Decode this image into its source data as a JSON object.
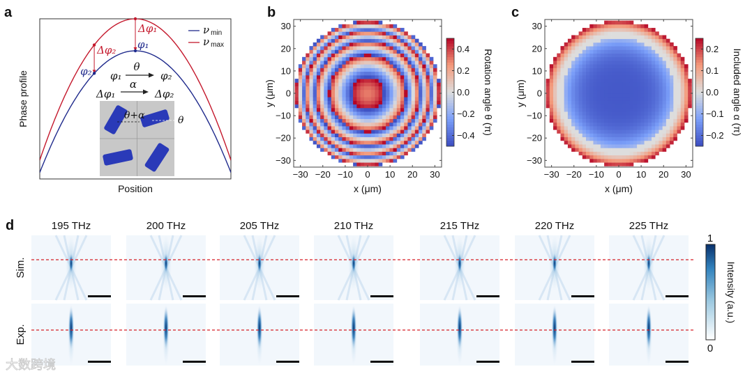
{
  "colors": {
    "nu_min": "#1f2a8c",
    "nu_max": "#c4182c",
    "cool": "#3b4cc0",
    "neutral": "#dddddd",
    "warm": "#b40426",
    "beam": "#08519c",
    "dash": "#d61f26",
    "meta_blue": "#2a3ab8",
    "inset_bg": "#c8c8c8"
  },
  "watermark": "大数跨境",
  "chart_data": [
    {
      "panel": "a",
      "type": "line",
      "xlabel": "Position",
      "ylabel": "Phase profile",
      "xlim": [
        0,
        1
      ],
      "ylim": [
        0,
        1
      ],
      "legend_position": "top-right",
      "series": [
        {
          "name": "ν min",
          "label_main": "ν",
          "label_sub": "min",
          "peak": 0.8,
          "edge": 0.04
        },
        {
          "name": "ν max",
          "label_main": "ν",
          "label_sub": "max",
          "peak": 1.0,
          "edge": 0.117
        }
      ],
      "points": [
        {
          "x": 0.5,
          "label_red": "Δφ₁",
          "label_blue": "φ₁"
        },
        {
          "x": 0.285,
          "label_red": "Δφ₂",
          "label_blue": "φ₂"
        }
      ],
      "annotations": {
        "phi1": "φ₁",
        "phi2": "φ₂",
        "theta": "θ",
        "dphi1": "Δφ₁",
        "dphi2": "Δφ₂",
        "alpha": "α",
        "inset_theta_alpha": "θ+α",
        "inset_theta": "θ"
      }
    },
    {
      "panel": "b",
      "type": "heatmap",
      "xlabel": "x (μm)",
      "ylabel": "y (μm)",
      "xlim": [
        -33,
        33
      ],
      "ylim": [
        -33,
        33
      ],
      "xticks": [
        "−30",
        "−20",
        "−10",
        "0",
        "10",
        "20",
        "30"
      ],
      "xtick_values": [
        -30,
        -20,
        -10,
        0,
        10,
        20,
        30
      ],
      "yticks": [
        "30",
        "20",
        "10",
        "0",
        "−10",
        "−20",
        "−30"
      ],
      "ytick_values": [
        30,
        20,
        10,
        0,
        -10,
        -20,
        -30
      ],
      "aperture_radius_um": 32.5,
      "cell_um": 1.625,
      "model": {
        "kind": "wrapped_quadratic",
        "offset": 0.3,
        "period_r2_um2": 245
      },
      "colorbar": {
        "label": "Rotation angle θ (π)",
        "range": [
          -0.5,
          0.5
        ],
        "ticks": [
          "0.4",
          "0.2",
          "0.0",
          "−0.2",
          "−0.4"
        ],
        "tick_values": [
          0.4,
          0.2,
          0.0,
          -0.2,
          -0.4
        ]
      }
    },
    {
      "panel": "c",
      "type": "heatmap",
      "xlabel": "x (μm)",
      "ylabel": "y (μm)",
      "xlim": [
        -33,
        33
      ],
      "ylim": [
        -33,
        33
      ],
      "xticks": [
        "−30",
        "−20",
        "−10",
        "0",
        "10",
        "20",
        "30"
      ],
      "xtick_values": [
        -30,
        -20,
        -10,
        0,
        10,
        20,
        30
      ],
      "yticks": [
        "30",
        "20",
        "10",
        "0",
        "−10",
        "−20",
        "−30"
      ],
      "ytick_values": [
        30,
        20,
        10,
        0,
        -10,
        -20,
        -30
      ],
      "aperture_radius_um": 32.5,
      "cell_um": 1.625,
      "model": {
        "kind": "power",
        "center": -0.23,
        "amplitude": 0.47,
        "exponent": 4
      },
      "colorbar": {
        "label": "Included angle α (π)",
        "range": [
          -0.25,
          0.25
        ],
        "ticks": [
          "0.2",
          "0.1",
          "0.0",
          "−0.1",
          "−0.2"
        ],
        "tick_values": [
          0.2,
          0.1,
          0.0,
          -0.1,
          -0.2
        ]
      }
    },
    {
      "panel": "d",
      "type": "heatmap",
      "columns": [
        "195 THz",
        "200 THz",
        "205 THz",
        "210 THz",
        "215 THz",
        "220 THz",
        "225 THz"
      ],
      "rows": [
        "Sim.",
        "Exp."
      ],
      "colorbar": {
        "label": "Intensity (a.u.)",
        "max_label": "1",
        "min_label": "0",
        "range": [
          0,
          1
        ]
      }
    }
  ],
  "panel_labels": [
    "a",
    "b",
    "c",
    "d"
  ]
}
